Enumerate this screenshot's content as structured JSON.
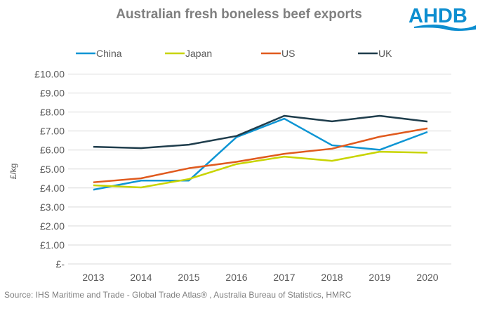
{
  "logo_text": "AHDB",
  "source": "Source: IHS Maritime and Trade  - Global Trade  Atlas® , Australia Bureau  of Statistics, HMRC",
  "chart_data": {
    "type": "line",
    "title": "Australian fresh boneless beef exports",
    "xlabel": "",
    "ylabel": "£/kg",
    "ylim": [
      0,
      10
    ],
    "grid": true,
    "legend_position": "top",
    "categories": [
      "2013",
      "2014",
      "2015",
      "2016",
      "2017",
      "2018",
      "2019",
      "2020"
    ],
    "y_ticks": [
      {
        "value": 0,
        "label": "£-"
      },
      {
        "value": 1,
        "label": "£1.00"
      },
      {
        "value": 2,
        "label": "£2.00"
      },
      {
        "value": 3,
        "label": "£3.00"
      },
      {
        "value": 4,
        "label": "£4.00"
      },
      {
        "value": 5,
        "label": "£5.00"
      },
      {
        "value": 6,
        "label": "£6.00"
      },
      {
        "value": 7,
        "label": "£7.00"
      },
      {
        "value": 8,
        "label": "£8.00"
      },
      {
        "value": 9,
        "label": "£9.00"
      },
      {
        "value": 10,
        "label": "£10.00"
      }
    ],
    "series": [
      {
        "name": "China",
        "color": "#0d95d4",
        "values": [
          3.91,
          4.39,
          4.39,
          6.68,
          7.65,
          6.25,
          6.01,
          6.95
        ]
      },
      {
        "name": "Japan",
        "color": "#c8d400",
        "values": [
          4.14,
          4.03,
          4.47,
          5.26,
          5.65,
          5.43,
          5.91,
          5.86
        ]
      },
      {
        "name": "US",
        "color": "#e05a1e",
        "values": [
          4.3,
          4.51,
          5.04,
          5.38,
          5.8,
          6.07,
          6.7,
          7.14
        ]
      },
      {
        "name": "UK",
        "color": "#1f3d4c",
        "values": [
          6.17,
          6.1,
          6.28,
          6.74,
          7.8,
          7.51,
          7.8,
          7.5
        ]
      }
    ]
  }
}
